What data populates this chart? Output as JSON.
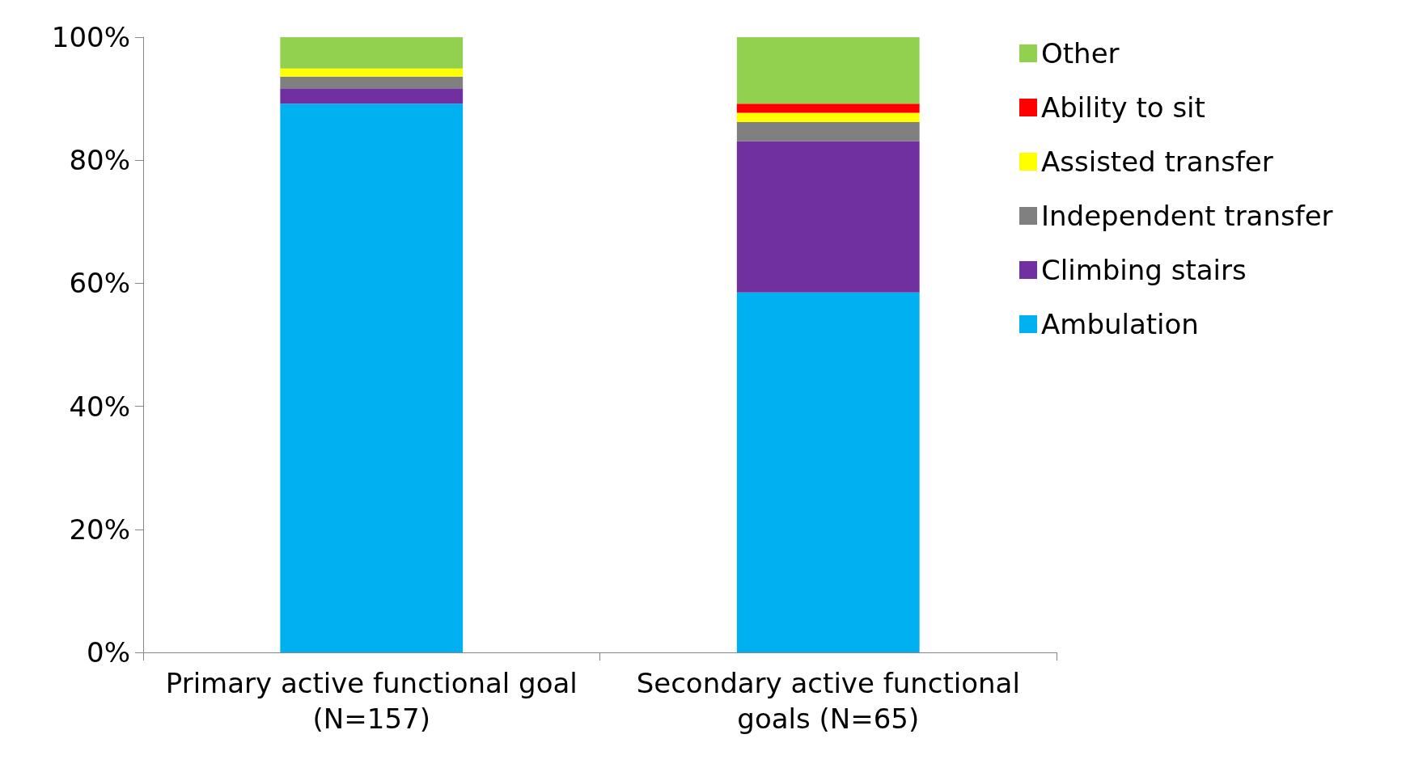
{
  "chart_data": {
    "type": "bar",
    "stacked": true,
    "legend": "right",
    "categories": [
      "Primary active functional goal\n(N=157)",
      "Secondary active functional\ngoals (N=65)"
    ],
    "series": [
      {
        "name": "Ambulation",
        "color": "#00b0f0",
        "values": [
          89.2,
          58.5
        ]
      },
      {
        "name": "Climbing stairs",
        "color": "#7030a0",
        "values": [
          2.5,
          24.6
        ]
      },
      {
        "name": "Independent transfer",
        "color": "#808080",
        "values": [
          1.9,
          3.1
        ]
      },
      {
        "name": "Assisted transfer",
        "color": "#ffff00",
        "values": [
          1.3,
          1.5
        ]
      },
      {
        "name": "Ability to sit",
        "color": "#ff0000",
        "values": [
          0,
          1.5
        ]
      },
      {
        "name": "Other",
        "color": "#92d050",
        "values": [
          5.1,
          10.8
        ]
      }
    ],
    "ylim": [
      0,
      100
    ],
    "yticks": [
      {
        "value": 0,
        "label": "0%"
      },
      {
        "value": 20,
        "label": "20%"
      },
      {
        "value": 40,
        "label": "40%"
      },
      {
        "value": 60,
        "label": "60%"
      },
      {
        "value": 80,
        "label": "80%"
      },
      {
        "value": 100,
        "label": "100%"
      }
    ]
  }
}
